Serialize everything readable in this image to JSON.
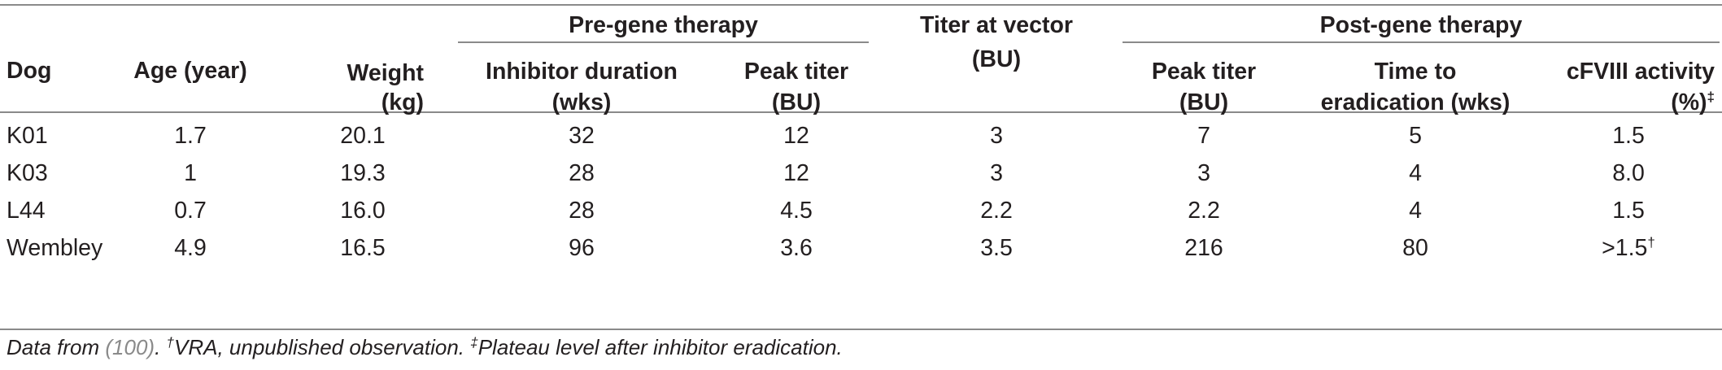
{
  "table": {
    "group_headers": {
      "pre": "Pre-gene therapy",
      "titer_line1": "Titer at vector",
      "titer_line2": "(BU)",
      "post": "Post-gene therapy"
    },
    "columns": {
      "dog": "Dog",
      "age": "Age (year)",
      "weight_line1": "Weight",
      "weight_line2": "(kg)",
      "inhib_line1": "Inhibitor duration",
      "inhib_line2": "(wks)",
      "prepeak_line1": "Peak titer",
      "prepeak_line2": "(BU)",
      "postpeak_line1": "Peak titer",
      "postpeak_line2": "(BU)",
      "time_line1": "Time to",
      "time_line2": "eradication (wks)",
      "act_line1": "cFVIII activity",
      "act_line2": "(%)",
      "act_mark": "‡"
    },
    "rows": [
      {
        "dog": "K01",
        "age": "1.7",
        "weight": "20.1",
        "inhib": "32",
        "prepeak": "12",
        "titer": "3",
        "postpeak": "7",
        "time": "5",
        "act": "1.5",
        "act_mark": ""
      },
      {
        "dog": "K03",
        "age": "1",
        "weight": "19.3",
        "inhib": "28",
        "prepeak": "12",
        "titer": "3",
        "postpeak": "3",
        "time": "4",
        "act": "8.0",
        "act_mark": ""
      },
      {
        "dog": "L44",
        "age": "0.7",
        "weight": "16.0",
        "inhib": "28",
        "prepeak": "4.5",
        "titer": "2.2",
        "postpeak": "2.2",
        "time": "4",
        "act": "1.5",
        "act_mark": ""
      },
      {
        "dog": "Wembley",
        "age": "4.9",
        "weight": "16.5",
        "inhib": "96",
        "prepeak": "3.6",
        "titer": "3.5",
        "postpeak": "216",
        "time": "80",
        "act": ">1.5",
        "act_mark": "†"
      }
    ]
  },
  "footnote": {
    "prefix": "Data from ",
    "ref": "(100)",
    "after_ref": ". ",
    "mark1": "†",
    "note1": "VRA, unpublished observation. ",
    "mark2": "‡",
    "note2": "Plateau level after inhibitor eradication."
  }
}
